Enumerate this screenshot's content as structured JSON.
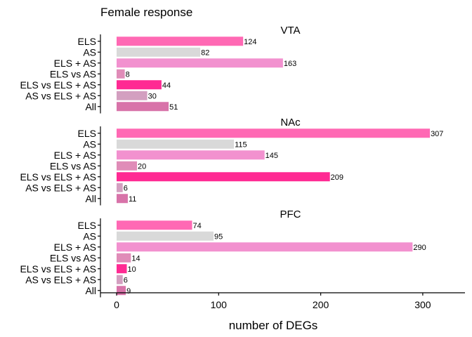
{
  "chart_data": {
    "type": "bar",
    "orientation": "horizontal",
    "title": "Female response",
    "xlabel": "number of DEGs",
    "ylabel": "",
    "xlim": [
      -18,
      340
    ],
    "xticks": [
      0,
      100,
      200,
      300
    ],
    "categories": [
      "ELS",
      "AS",
      "ELS + AS",
      "ELS vs AS",
      "ELS vs ELS + AS",
      "AS vs ELS + AS",
      "All"
    ],
    "colors": [
      "#ff69b4",
      "#d9d9d9",
      "#f291cf",
      "#e08cb8",
      "#ff2a93",
      "#d39fc0",
      "#d873a9"
    ],
    "legend": "none",
    "grid": false,
    "panels": [
      {
        "name": "VTA",
        "values": [
          124,
          82,
          163,
          8,
          44,
          30,
          51
        ]
      },
      {
        "name": "NAc",
        "values": [
          307,
          115,
          145,
          20,
          209,
          6,
          11
        ]
      },
      {
        "name": "PFC",
        "values": [
          74,
          95,
          290,
          14,
          10,
          6,
          9
        ]
      }
    ]
  }
}
